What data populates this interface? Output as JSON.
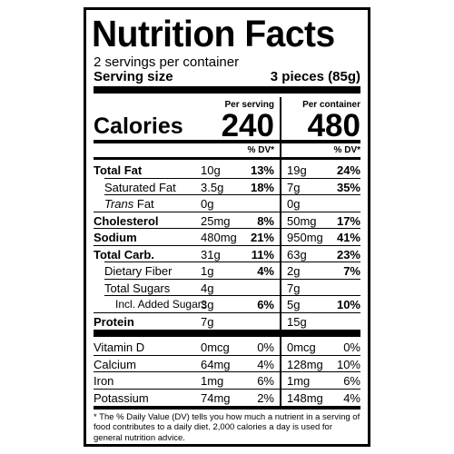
{
  "title": "Nutrition Facts",
  "servings": "2 servings per container",
  "serving_size": {
    "label": "Serving size",
    "value": "3 pieces (85g)"
  },
  "calories_label": "Calories",
  "columns": [
    {
      "heading": "Per serving",
      "calories": "240",
      "dv_header": "% DV*"
    },
    {
      "heading": "Per container",
      "calories": "480",
      "dv_header": "% DV*"
    }
  ],
  "nutrients": [
    {
      "name": "Total Fat",
      "bold": true,
      "indent": 0,
      "values": [
        "10g",
        "13%",
        "19g",
        "24%"
      ]
    },
    {
      "name": "Saturated Fat",
      "bold": false,
      "indent": 1,
      "values": [
        "3.5g",
        "18%",
        "7g",
        "35%"
      ]
    },
    {
      "name_italic": "Trans",
      "name": " Fat",
      "bold": false,
      "indent": 1,
      "values": [
        "0g",
        null,
        "0g",
        null
      ]
    },
    {
      "name": "Cholesterol",
      "bold": true,
      "indent": 0,
      "values": [
        "25mg",
        "8%",
        "50mg",
        "17%"
      ]
    },
    {
      "name": "Sodium",
      "bold": true,
      "indent": 0,
      "values": [
        "480mg",
        "21%",
        "950mg",
        "41%"
      ]
    },
    {
      "name": "Total Carb.",
      "bold": true,
      "indent": 0,
      "values": [
        "31g",
        "11%",
        "63g",
        "23%"
      ]
    },
    {
      "name": "Dietary Fiber",
      "bold": false,
      "indent": 1,
      "values": [
        "1g",
        "4%",
        "2g",
        "7%"
      ]
    },
    {
      "name": "Total Sugars",
      "bold": false,
      "indent": 1,
      "values": [
        "4g",
        null,
        "7g",
        null
      ]
    },
    {
      "name": "Incl. Added Sugars",
      "bold": false,
      "indent": 2,
      "values": [
        "3g",
        "6%",
        "5g",
        "10%"
      ]
    },
    {
      "name": "Protein",
      "bold": true,
      "indent": 0,
      "values": [
        "7g",
        null,
        "15g",
        null
      ]
    }
  ],
  "vitamins": [
    {
      "name": "Vitamin D",
      "values": [
        "0mcg",
        "0%",
        "0mcg",
        "0%"
      ]
    },
    {
      "name": "Calcium",
      "values": [
        "64mg",
        "4%",
        "128mg",
        "10%"
      ]
    },
    {
      "name": "Iron",
      "values": [
        "1mg",
        "6%",
        "1mg",
        "6%"
      ]
    },
    {
      "name": "Potassium",
      "values": [
        "74mg",
        "2%",
        "148mg",
        "4%"
      ]
    }
  ],
  "footnote": "* The % Daily Value (DV) tells you how much a nutrient in a serving of food contributes to a daily diet. 2,000 calories a day is used for general nutrition advice."
}
